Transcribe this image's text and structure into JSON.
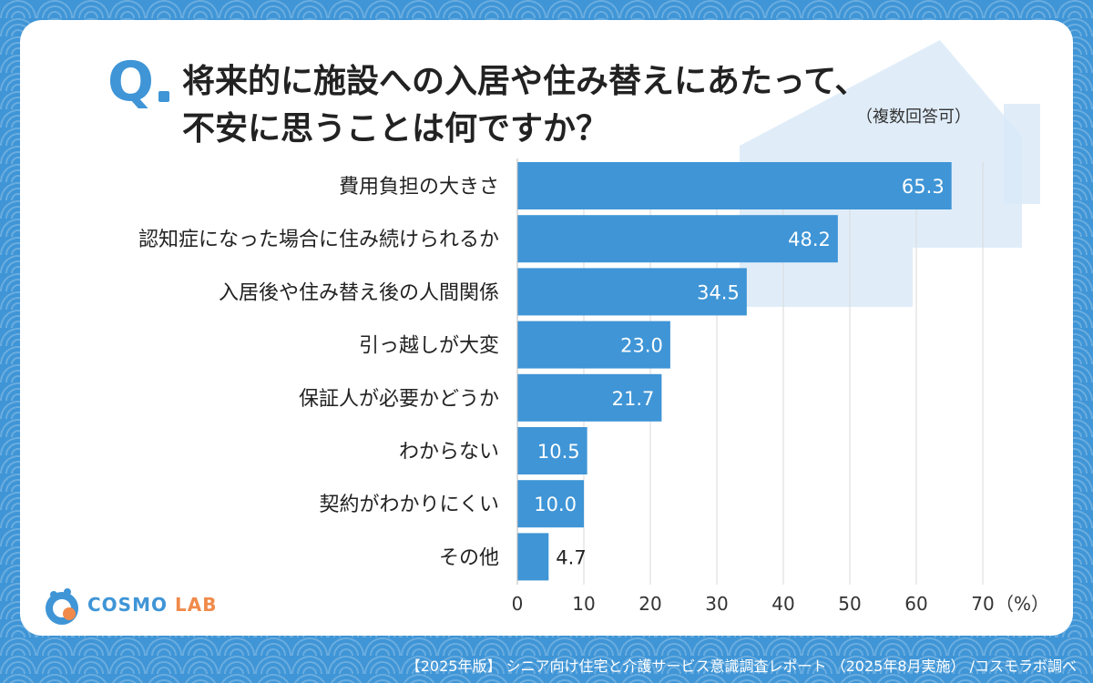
{
  "header": {
    "question_mark": "Q",
    "title_line1": "将来的に施設への入居や住み替えにあたって、",
    "title_line2": "不安に思うことは何ですか？",
    "note": "（複数回答可）"
  },
  "logo": {
    "brand": "COSMO",
    "brand_sub": "LAB"
  },
  "footer": {
    "source": "【2025年版】 シニア向け住宅と介護サービス意識調査レポート （2025年8月実施） /コスモラボ調べ"
  },
  "colors": {
    "bar": "#3f95d6",
    "background": "#3f95d6",
    "accent": "#f08a4b"
  },
  "chart_data": {
    "type": "bar",
    "orientation": "horizontal",
    "categories": [
      "費用負担の大きさ",
      "認知症になった場合に住み続けられるか",
      "入居後や住み替え後の人間関係",
      "引っ越しが大変",
      "保証人が必要かどうか",
      "わからない",
      "契約がわかりにくい",
      "その他"
    ],
    "values": [
      65.3,
      48.2,
      34.5,
      23.0,
      21.7,
      10.5,
      10.0,
      4.7
    ],
    "value_labels": [
      "65.3",
      "48.2",
      "34.5",
      "23.0",
      "21.7",
      "10.5",
      "10.0",
      "4.7"
    ],
    "xlim": [
      0,
      70
    ],
    "ticks": [
      "0",
      "10",
      "20",
      "30",
      "40",
      "50",
      "60",
      "70"
    ],
    "unit_label": "（%）",
    "grid": true
  }
}
